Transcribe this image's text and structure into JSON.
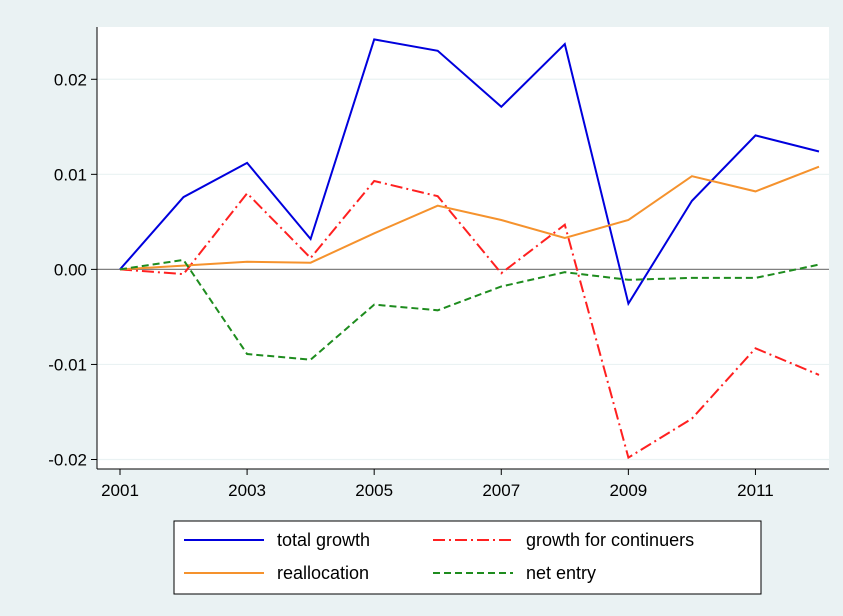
{
  "chart_data": {
    "type": "line",
    "title": "",
    "xlabel": "",
    "ylabel": "",
    "x": [
      2001,
      2002,
      2003,
      2004,
      2005,
      2006,
      2007,
      2008,
      2009,
      2010,
      2011,
      2012
    ],
    "xlim": [
      2001,
      2012
    ],
    "ylim": [
      -0.021,
      0.0255
    ],
    "x_ticks": [
      2001,
      2003,
      2005,
      2007,
      2009,
      2011
    ],
    "x_tick_labels": [
      "2001",
      "2003",
      "2005",
      "2007",
      "2009",
      "2011"
    ],
    "y_ticks": [
      -0.02,
      -0.01,
      0.0,
      0.01,
      0.02
    ],
    "y_tick_labels": [
      "-0.02",
      "-0.01",
      "0.00",
      "0.01",
      "0.02"
    ],
    "grid": "horizontal",
    "zero_line": true,
    "legend_position": "bottom",
    "series": [
      {
        "name": "total growth",
        "color": "#0000dd",
        "style": "solid",
        "values": [
          0.0,
          0.0076,
          0.0112,
          0.0032,
          0.0242,
          0.023,
          0.0171,
          0.0237,
          -0.0036,
          0.0072,
          0.0141,
          0.0124
        ]
      },
      {
        "name": "growth for continuers",
        "color": "#ff2020",
        "style": "dashdot",
        "values": [
          0.0,
          -0.0005,
          0.008,
          0.0012,
          0.0093,
          0.0077,
          -0.0004,
          0.0047,
          -0.0198,
          -0.0157,
          -0.0083,
          -0.0111
        ]
      },
      {
        "name": "reallocation",
        "color": "#f5922d",
        "style": "solid",
        "values": [
          0.0,
          0.0004,
          0.0008,
          0.0007,
          0.0038,
          0.0067,
          0.0052,
          0.0033,
          0.0052,
          0.0098,
          0.0082,
          0.0108
        ]
      },
      {
        "name": "net entry",
        "color": "#1e8c1e",
        "style": "dashed",
        "values": [
          0.0,
          0.001,
          -0.0089,
          -0.0095,
          -0.0037,
          -0.0043,
          -0.0018,
          -0.0003,
          -0.0011,
          -0.0009,
          -0.0009,
          0.0005
        ]
      }
    ]
  }
}
